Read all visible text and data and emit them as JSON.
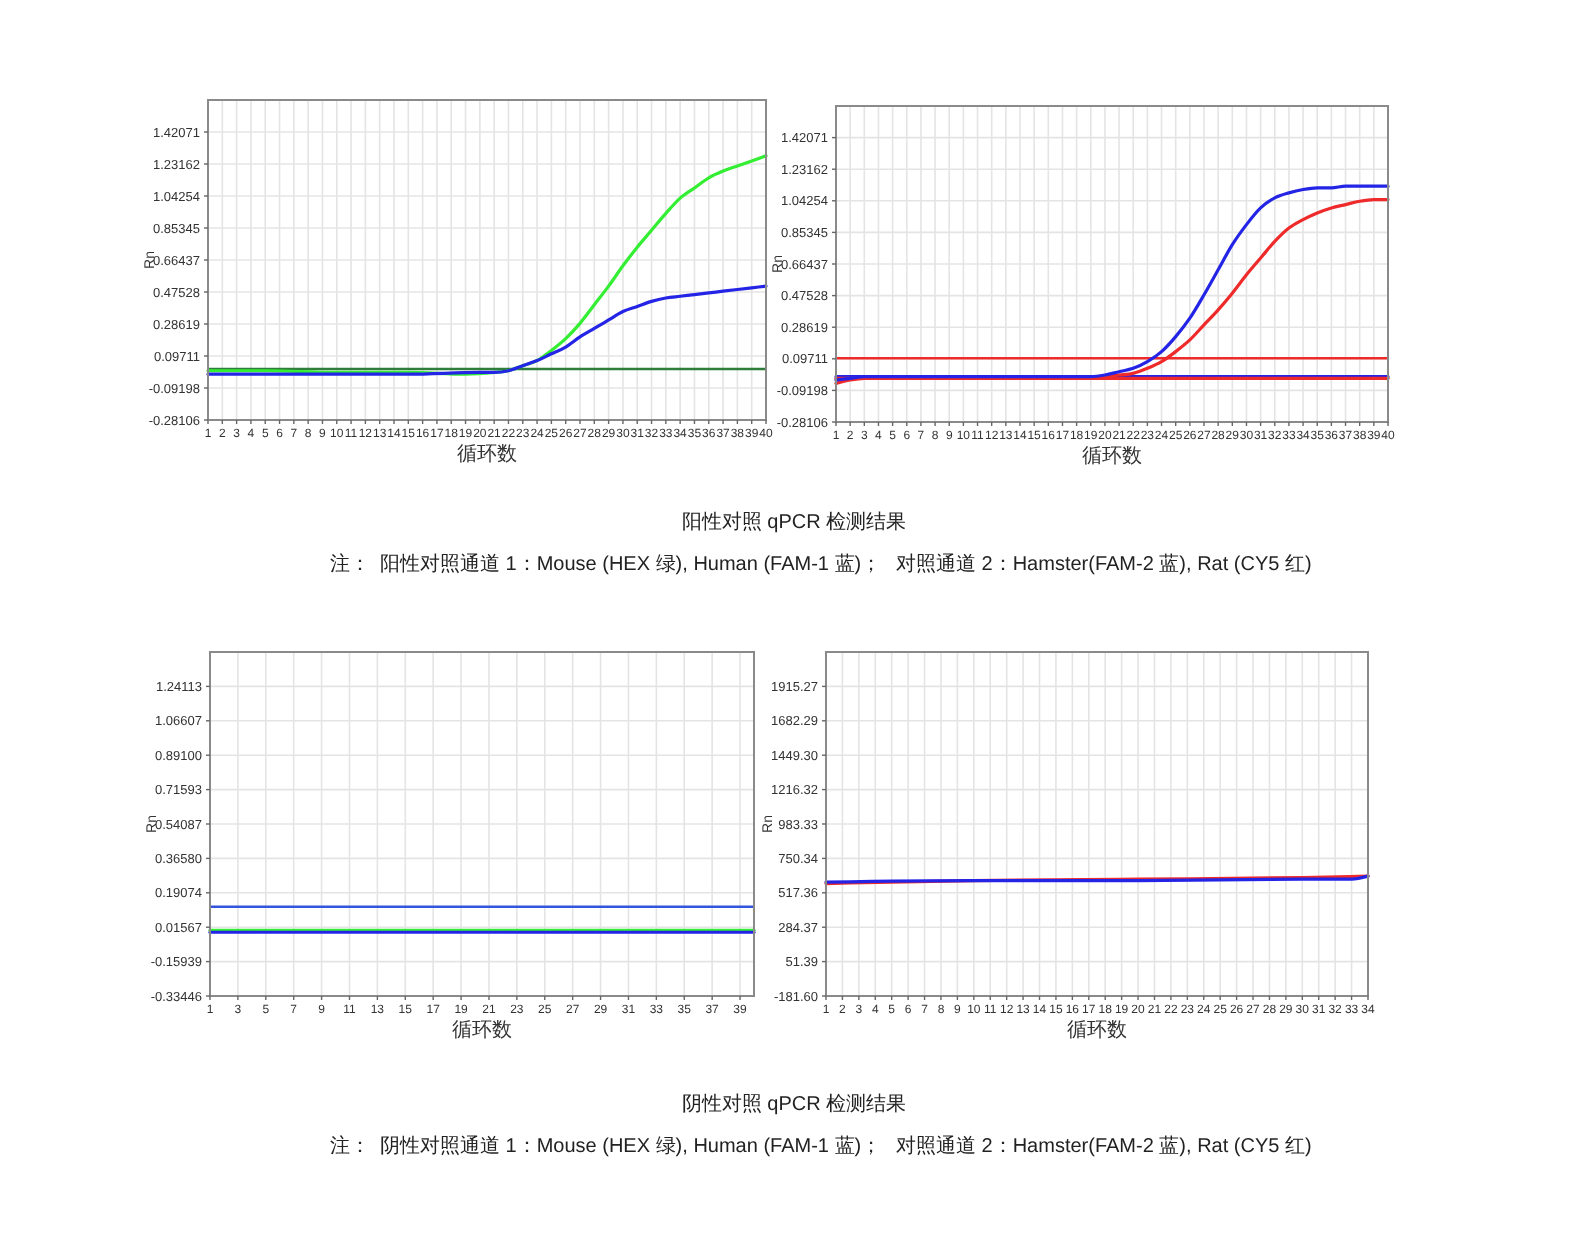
{
  "chart_data": [
    {
      "type": "line",
      "xlabel": "循环数",
      "ylabel": "Rn",
      "xlim": [
        1,
        40
      ],
      "xticks": [
        1,
        2,
        3,
        4,
        5,
        6,
        7,
        8,
        9,
        10,
        11,
        12,
        13,
        14,
        15,
        16,
        17,
        18,
        19,
        20,
        21,
        22,
        23,
        24,
        25,
        26,
        27,
        28,
        29,
        30,
        31,
        32,
        33,
        34,
        35,
        36,
        37,
        38,
        39,
        40
      ],
      "ylim": [
        -0.28106,
        1.6098
      ],
      "yticks": [
        -0.28106,
        -0.09198,
        0.09711,
        0.28619,
        0.47528,
        0.66437,
        0.85345,
        1.04254,
        1.23162,
        1.42071
      ],
      "grid": true,
      "series": [
        {
          "color": "#33ee33",
          "x": [
            1,
            5,
            10,
            15,
            19,
            21,
            22,
            23,
            24,
            25,
            26,
            27,
            28,
            29,
            30,
            31,
            32,
            33,
            34,
            35,
            36,
            37,
            38,
            39,
            40
          ],
          "values": [
            0.01,
            0.01,
            0.0,
            0.0,
            -0.01,
            0.0,
            0.01,
            0.04,
            0.07,
            0.13,
            0.2,
            0.29,
            0.4,
            0.51,
            0.63,
            0.74,
            0.84,
            0.94,
            1.03,
            1.09,
            1.15,
            1.19,
            1.22,
            1.25,
            1.28
          ]
        },
        {
          "color": "#2424e6",
          "x": [
            1,
            5,
            10,
            15,
            20,
            21,
            22,
            23,
            24,
            25,
            26,
            27,
            28,
            29,
            30,
            31,
            32,
            33,
            34,
            35,
            36,
            37,
            38,
            39,
            40
          ],
          "values": [
            -0.01,
            -0.01,
            -0.01,
            -0.01,
            0.0,
            0.0,
            0.01,
            0.04,
            0.07,
            0.11,
            0.15,
            0.21,
            0.26,
            0.31,
            0.36,
            0.39,
            0.42,
            0.44,
            0.45,
            0.46,
            0.47,
            0.48,
            0.49,
            0.5,
            0.51
          ]
        }
      ],
      "ref_lines": [
        {
          "axis": "y",
          "value": 0.02,
          "color": "#2f7d3a"
        }
      ],
      "annotations": [
        "阳性对照 qPCR 检测结果",
        "注：",
        "阳性对照通道 1：Mouse (HEX 绿), Human (FAM-1 蓝)；",
        "对照通道 2：Hamster(FAM-2 蓝), Rat (CY5 红)"
      ]
    },
    {
      "type": "line",
      "xlabel": "循环数",
      "ylabel": "Rn",
      "xlim": [
        1,
        40
      ],
      "xticks": [
        1,
        2,
        3,
        4,
        5,
        6,
        7,
        8,
        9,
        10,
        11,
        12,
        13,
        14,
        15,
        16,
        17,
        18,
        19,
        20,
        21,
        22,
        23,
        24,
        25,
        26,
        27,
        28,
        29,
        30,
        31,
        32,
        33,
        34,
        35,
        36,
        37,
        38,
        39,
        40
      ],
      "ylim": [
        -0.28106,
        1.6098
      ],
      "yticks": [
        -0.28106,
        -0.09198,
        0.09711,
        0.28619,
        0.47528,
        0.66437,
        0.85345,
        1.04254,
        1.23162,
        1.42071
      ],
      "grid": true,
      "series": [
        {
          "color": "#2424e6",
          "x": [
            1,
            40
          ],
          "values": [
            -0.01,
            -0.01
          ]
        },
        {
          "color": "#ee2a2a",
          "x": [
            1,
            40
          ],
          "values": [
            -0.02,
            -0.02
          ]
        },
        {
          "color": "#ee2a2a",
          "x": [
            1,
            2,
            3,
            10,
            18,
            19,
            20,
            21,
            22,
            23,
            24,
            25,
            26,
            27,
            28,
            29,
            30,
            31,
            32,
            33,
            34,
            35,
            36,
            37,
            38,
            39,
            40
          ],
          "values": [
            -0.05,
            -0.03,
            -0.02,
            -0.02,
            -0.02,
            -0.02,
            -0.01,
            0.0,
            0.01,
            0.04,
            0.08,
            0.14,
            0.21,
            0.3,
            0.39,
            0.49,
            0.6,
            0.7,
            0.8,
            0.88,
            0.93,
            0.97,
            1.0,
            1.02,
            1.04,
            1.05,
            1.05
          ]
        },
        {
          "color": "#2424e6",
          "x": [
            1,
            2,
            3,
            10,
            18,
            19,
            20,
            21,
            22,
            23,
            24,
            25,
            26,
            27,
            28,
            29,
            30,
            31,
            32,
            33,
            34,
            35,
            36,
            37,
            38,
            39,
            40
          ],
          "values": [
            -0.03,
            -0.02,
            -0.01,
            -0.01,
            -0.01,
            -0.01,
            0.0,
            0.02,
            0.04,
            0.08,
            0.14,
            0.23,
            0.34,
            0.48,
            0.63,
            0.78,
            0.9,
            1.0,
            1.06,
            1.09,
            1.11,
            1.12,
            1.12,
            1.13,
            1.13,
            1.13,
            1.13
          ]
        }
      ],
      "ref_lines": [
        {
          "axis": "y",
          "value": 0.1,
          "color": "#ee2a2a"
        }
      ]
    },
    {
      "type": "line",
      "xlabel": "循环数",
      "ylabel": "Rn",
      "xlim": [
        1,
        40
      ],
      "xticks": [
        1,
        3,
        5,
        7,
        9,
        11,
        13,
        15,
        17,
        19,
        21,
        23,
        25,
        27,
        29,
        31,
        33,
        35,
        37,
        39
      ],
      "ylim": [
        -0.33446,
        1.4162
      ],
      "yticks": [
        -0.33446,
        -0.15939,
        0.01567,
        0.19074,
        {
          "value": 0.3658,
          "label": "0.36580"
        },
        0.54087,
        0.71593,
        {
          "value": 0.891,
          "label": "0.89100"
        },
        1.06607,
        1.24113
      ],
      "grid": true,
      "series": [
        {
          "color": "#33ee33",
          "x": [
            1,
            10,
            20,
            30,
            40
          ],
          "values": [
            0.0,
            0.0,
            0.0,
            0.0,
            0.0
          ]
        },
        {
          "color": "#2424e6",
          "x": [
            1,
            10,
            20,
            30,
            40
          ],
          "values": [
            -0.01,
            -0.01,
            -0.01,
            -0.01,
            -0.01
          ]
        }
      ],
      "ref_lines": [
        {
          "axis": "y",
          "value": 0.12,
          "color": "#3355dd"
        }
      ],
      "annotations": [
        "阴性对照 qPCR 检测结果",
        "注：",
        "阴性对照通道 1：Mouse (HEX 绿), Human (FAM-1 蓝)；",
        "对照通道 2：Hamster(FAM-2 蓝), Rat (CY5 红)"
      ]
    },
    {
      "type": "line",
      "xlabel": "循环数",
      "ylabel": "Rn",
      "xlim": [
        1,
        34
      ],
      "xticks": [
        1,
        2,
        3,
        4,
        5,
        6,
        7,
        8,
        9,
        10,
        11,
        12,
        13,
        14,
        15,
        16,
        17,
        18,
        19,
        20,
        21,
        22,
        23,
        24,
        25,
        26,
        27,
        28,
        29,
        30,
        31,
        32,
        33,
        34
      ],
      "ylim": [
        -181.6,
        2148.26
      ],
      "yticks": [
        {
          "value": -181.6,
          "label": "-181.60"
        },
        51.39,
        284.37,
        517.36,
        750.34,
        983.33,
        1216.32,
        {
          "value": 1449.3,
          "label": "1449.30"
        },
        1682.29,
        1915.27
      ],
      "grid": true,
      "series": [
        {
          "color": "#ee2a2a",
          "x": [
            1,
            10,
            20,
            30,
            34
          ],
          "values": [
            580,
            600,
            610,
            620,
            630
          ]
        },
        {
          "color": "#2424e6",
          "x": [
            1,
            10,
            20,
            30,
            33,
            34
          ],
          "values": [
            590,
            600,
            600,
            610,
            610,
            630
          ]
        }
      ]
    }
  ]
}
